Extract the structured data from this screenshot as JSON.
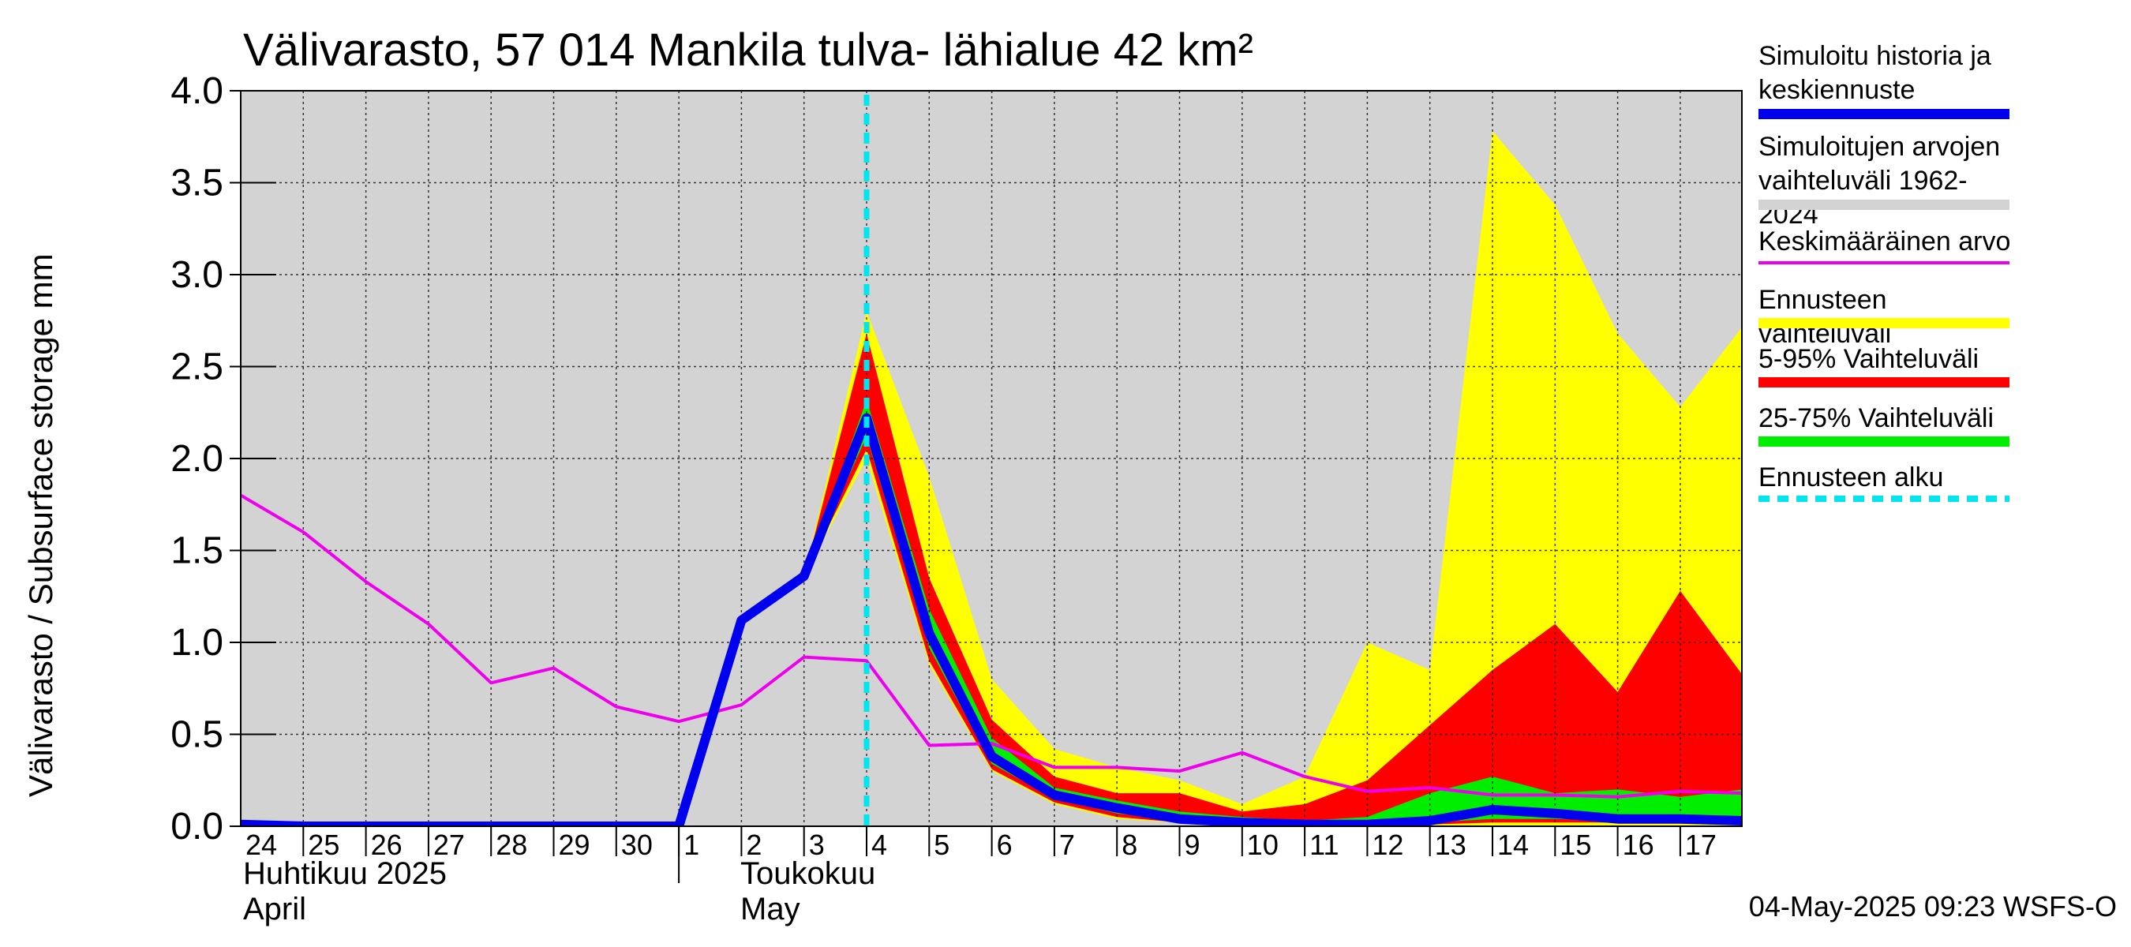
{
  "title": "Välivarasto, 57 014 Mankila tulva- lähialue 42 km²",
  "timestamp": "04-May-2025 09:23 WSFS-O",
  "months": [
    {
      "fi": "Huhtikuu  2025",
      "en": "April"
    },
    {
      "fi": "Toukokuu",
      "en": "May"
    }
  ],
  "legend": [
    {
      "label": "Simuloitu historia ja keskiennuste",
      "color": "#0000ee",
      "style": "thick"
    },
    {
      "label": "Simuloitujen arvojen vaihteluväli 1962-2024",
      "color": "#d3d3d3",
      "style": "thick"
    },
    {
      "label": "Keskimääräinen arvo",
      "color": "#ee00ee",
      "style": "thin"
    },
    {
      "label": "Ennusteen vaihteluväli",
      "color": "#ffff00",
      "style": "thick"
    },
    {
      "label": "5-95% Vaihteluväli",
      "color": "#ff0000",
      "style": "thick"
    },
    {
      "label": "25-75% Vaihteluväli",
      "color": "#00ee00",
      "style": "thick"
    },
    {
      "label": "Ennusteen alku",
      "color": "#00e5ee",
      "style": "dashed"
    }
  ],
  "chart_data": {
    "type": "area",
    "title": "Välivarasto, 57 014 Mankila tulva- lähialue 42 km²",
    "ylabel": "Välivarasto / Subsurface storage  mm",
    "ylim": [
      0,
      4.0
    ],
    "yticks": [
      "0.0",
      "0.5",
      "1.0",
      "1.5",
      "2.0",
      "2.5",
      "3.0",
      "3.5",
      "4.0"
    ],
    "grid": true,
    "legend_position": "right",
    "x_tick_labels": [
      "24",
      "25",
      "26",
      "27",
      "28",
      "29",
      "30",
      "1",
      "2",
      "3",
      "4",
      "5",
      "6",
      "7",
      "8",
      "9",
      "10",
      "11",
      "12",
      "13",
      "14",
      "15",
      "16",
      "17"
    ],
    "x_dates": [
      "2025-04-24",
      "2025-04-25",
      "2025-04-26",
      "2025-04-27",
      "2025-04-28",
      "2025-04-29",
      "2025-04-30",
      "2025-05-01",
      "2025-05-02",
      "2025-05-03",
      "2025-05-04",
      "2025-05-05",
      "2025-05-06",
      "2025-05-07",
      "2025-05-08",
      "2025-05-09",
      "2025-05-10",
      "2025-05-11",
      "2025-05-12",
      "2025-05-13",
      "2025-05-14",
      "2025-05-15",
      "2025-05-16",
      "2025-05-17",
      "2025-05-18"
    ],
    "forecast_start": "2025-05-04",
    "series": [
      {
        "name": "Simuloitujen arvojen vaihteluväli 1962-2024",
        "kind": "band",
        "color": "#d3d3d3",
        "x": [
          "2025-04-24",
          "2025-05-18"
        ],
        "low": [
          0,
          0
        ],
        "high": [
          4.0,
          4.0
        ]
      },
      {
        "name": "Ennusteen vaihteluväli",
        "kind": "band",
        "color": "#ffff00",
        "x": [
          "2025-05-03",
          "2025-05-04",
          "2025-05-05",
          "2025-05-06",
          "2025-05-07",
          "2025-05-08",
          "2025-05-09",
          "2025-05-10",
          "2025-05-11",
          "2025-05-12",
          "2025-05-13",
          "2025-05-14",
          "2025-05-15",
          "2025-05-16",
          "2025-05-17",
          "2025-05-18"
        ],
        "low": [
          1.36,
          2.0,
          0.88,
          0.3,
          0.12,
          0.04,
          0.02,
          0.01,
          0.0,
          0.0,
          0.0,
          0.0,
          0.0,
          0.0,
          0.0,
          0.0
        ],
        "high": [
          1.36,
          2.8,
          1.9,
          0.8,
          0.42,
          0.32,
          0.25,
          0.12,
          0.27,
          1.0,
          0.85,
          3.78,
          3.38,
          2.68,
          2.28,
          2.72
        ]
      },
      {
        "name": "5-95% Vaihteluväli",
        "kind": "band",
        "color": "#ff0000",
        "x": [
          "2025-05-03",
          "2025-05-04",
          "2025-05-05",
          "2025-05-06",
          "2025-05-07",
          "2025-05-08",
          "2025-05-09",
          "2025-05-10",
          "2025-05-11",
          "2025-05-12",
          "2025-05-13",
          "2025-05-14",
          "2025-05-15",
          "2025-05-16",
          "2025-05-17",
          "2025-05-18"
        ],
        "low": [
          1.36,
          2.05,
          0.9,
          0.31,
          0.13,
          0.05,
          0.02,
          0.01,
          0.0,
          0.0,
          0.01,
          0.02,
          0.02,
          0.02,
          0.02,
          0.02
        ],
        "high": [
          1.36,
          2.68,
          1.35,
          0.58,
          0.27,
          0.18,
          0.18,
          0.08,
          0.12,
          0.25,
          0.55,
          0.85,
          1.1,
          0.73,
          1.28,
          0.82
        ]
      },
      {
        "name": "25-75% Vaihteluväli",
        "kind": "band",
        "color": "#00ee00",
        "x": [
          "2025-05-03",
          "2025-05-04",
          "2025-05-05",
          "2025-05-06",
          "2025-05-07",
          "2025-05-08",
          "2025-05-09",
          "2025-05-10",
          "2025-05-11",
          "2025-05-12",
          "2025-05-13",
          "2025-05-14",
          "2025-05-15",
          "2025-05-16",
          "2025-05-17",
          "2025-05-18"
        ],
        "low": [
          1.36,
          2.12,
          0.97,
          0.34,
          0.15,
          0.07,
          0.03,
          0.01,
          0.0,
          0.0,
          0.02,
          0.04,
          0.04,
          0.03,
          0.03,
          0.03
        ],
        "high": [
          1.36,
          2.32,
          1.18,
          0.48,
          0.21,
          0.14,
          0.08,
          0.05,
          0.03,
          0.05,
          0.18,
          0.27,
          0.18,
          0.2,
          0.16,
          0.2
        ]
      },
      {
        "name": "Keskimääräinen arvo",
        "kind": "line",
        "color": "#ee00ee",
        "x": [
          "2025-04-24",
          "2025-04-25",
          "2025-04-26",
          "2025-04-27",
          "2025-04-28",
          "2025-04-29",
          "2025-04-30",
          "2025-05-01",
          "2025-05-02",
          "2025-05-03",
          "2025-05-04",
          "2025-05-05",
          "2025-05-06",
          "2025-05-07",
          "2025-05-08",
          "2025-05-09",
          "2025-05-10",
          "2025-05-11",
          "2025-05-12",
          "2025-05-13",
          "2025-05-14",
          "2025-05-15",
          "2025-05-16",
          "2025-05-17",
          "2025-05-18"
        ],
        "values": [
          1.8,
          1.6,
          1.33,
          1.1,
          0.78,
          0.86,
          0.65,
          0.57,
          0.66,
          0.92,
          0.9,
          0.44,
          0.45,
          0.32,
          0.32,
          0.3,
          0.4,
          0.27,
          0.19,
          0.21,
          0.17,
          0.17,
          0.16,
          0.19,
          0.18
        ]
      },
      {
        "name": "Simuloitu historia ja keskiennuste",
        "kind": "line",
        "color": "#0000ee",
        "x": [
          "2025-04-24",
          "2025-04-25",
          "2025-04-26",
          "2025-04-27",
          "2025-04-28",
          "2025-04-29",
          "2025-04-30",
          "2025-05-01",
          "2025-05-02",
          "2025-05-03",
          "2025-05-04",
          "2025-05-05",
          "2025-05-06",
          "2025-05-07",
          "2025-05-08",
          "2025-05-09",
          "2025-05-10",
          "2025-05-11",
          "2025-05-12",
          "2025-05-13",
          "2025-05-14",
          "2025-05-15",
          "2025-05-16",
          "2025-05-17",
          "2025-05-18"
        ],
        "values": [
          0.01,
          0.0,
          0.0,
          0.0,
          0.0,
          0.0,
          0.0,
          0.0,
          1.12,
          1.36,
          2.22,
          1.05,
          0.38,
          0.17,
          0.1,
          0.04,
          0.02,
          0.01,
          0.01,
          0.03,
          0.09,
          0.07,
          0.04,
          0.04,
          0.03
        ]
      }
    ]
  }
}
